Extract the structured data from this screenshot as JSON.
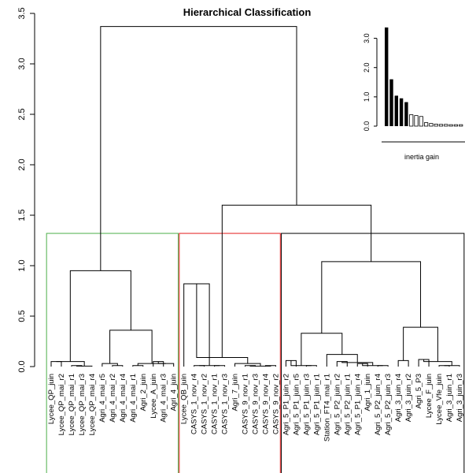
{
  "chart_data": {
    "type": "dendrogram",
    "title": "Hierarchical Classification",
    "ylim": [
      0,
      3.5
    ],
    "yticks": [
      "0.0",
      "0.5",
      "1.0",
      "1.5",
      "2.0",
      "2.5",
      "3.0",
      "3.5"
    ],
    "cut_height": 1.32,
    "leaves": [
      "Lycee_QP_juin",
      "Lycee_QP_mai_r2",
      "Lycee_QP_mai_r1",
      "Lycee_QP_mai_r3",
      "Lycee_QP_mai_r4",
      "Agri_4_mai_r5",
      "Agri_4_mai_r2",
      "Agri_4_mai_r4",
      "Agri_4_mai_r1",
      "Agri_2_juin",
      "Lycee_A_juin",
      "Agri_4_mai_r3",
      "Agri_4_juin",
      "Lycee_QB_juin",
      "CASYS_1_nov_r4",
      "CASYS_1_nov_r2",
      "CASYS_1_nov_r1",
      "CASYS_1_nov_r3",
      "Agri_7_juin",
      "CASYS_9_nov_r1",
      "CASYS_9_nov_r3",
      "CASYS_9_nov_r4",
      "CASYS_9_nov_r2",
      "Agri_5_P1_juin_r2",
      "Agri_5_P1_juin_r5",
      "Agri_5_P1_juin_r3",
      "Agri_5_P1_juin_r1",
      "Station_FT4_mai_r1",
      "Agri_5_P2_juin_r2",
      "Agri_5_P2_juin_r1",
      "Agri_5_P1_juin_r4",
      "Agri_1_juin",
      "Agri_5_P2_juin_r4",
      "Agri_5_P2_juin_r3",
      "Agri_3_juin_r4",
      "Agri_3_juin_r2",
      "Agri_5_P3",
      "Lycee_F_juin",
      "Lycee_Vfe_juin",
      "Agri_3_juin_r1",
      "Agri_3_juin_r3"
    ],
    "merges": [
      {
        "id": "g1",
        "children": [
          0,
          1
        ],
        "height": 0.05
      },
      {
        "id": "g2",
        "children": [
          2,
          3
        ],
        "height": 0.01
      },
      {
        "id": "g3",
        "children": [
          "g2",
          4
        ],
        "height": 0.005
      },
      {
        "id": "g4",
        "children": [
          "g1",
          "g3"
        ],
        "height": 0.05
      },
      {
        "id": "g5",
        "children": [
          6,
          7
        ],
        "height": 0.01
      },
      {
        "id": "g6",
        "children": [
          5,
          "g5"
        ],
        "height": 0.03
      },
      {
        "id": "g7",
        "children": [
          8,
          9
        ],
        "height": 0.01
      },
      {
        "id": "g8",
        "children": [
          10,
          11
        ],
        "height": 0.05
      },
      {
        "id": "g9",
        "children": [
          "g8",
          12
        ],
        "height": 0.03
      },
      {
        "id": "g10",
        "children": [
          "g7",
          "g9"
        ],
        "height": 0.03
      },
      {
        "id": "g11",
        "children": [
          "g6",
          "g10"
        ],
        "height": 0.36
      },
      {
        "id": "g12",
        "children": [
          "g4",
          "g11"
        ],
        "height": 0.95
      },
      {
        "id": "r1",
        "children": [
          14,
          15
        ],
        "height": 0.01
      },
      {
        "id": "r2",
        "children": [
          16,
          17
        ],
        "height": 0.01
      },
      {
        "id": "r3",
        "children": [
          "r1",
          "r2"
        ],
        "height": 0.01
      },
      {
        "id": "r4",
        "children": [
          13,
          "r3"
        ],
        "height": 0.82
      },
      {
        "id": "r5",
        "children": [
          19,
          20
        ],
        "height": 0.01
      },
      {
        "id": "r6",
        "children": [
          21,
          22
        ],
        "height": 0.01
      },
      {
        "id": "r7",
        "children": [
          "r5",
          "r6"
        ],
        "height": 0.005
      },
      {
        "id": "r8",
        "children": [
          18,
          "r7"
        ],
        "height": 0.03
      },
      {
        "id": "r9",
        "children": [
          "r4",
          "r8"
        ],
        "height": 0.09
      },
      {
        "id": "b1",
        "children": [
          23,
          24
        ],
        "height": 0.06
      },
      {
        "id": "b2",
        "children": [
          25,
          26
        ],
        "height": 0.01
      },
      {
        "id": "b3",
        "children": [
          "b1",
          "b2"
        ],
        "height": 0.01
      },
      {
        "id": "b4",
        "children": [
          28,
          29
        ],
        "height": 0.05
      },
      {
        "id": "b5",
        "children": [
          30,
          31
        ],
        "height": 0.03
      },
      {
        "id": "b6",
        "children": [
          32,
          33
        ],
        "height": 0.01
      },
      {
        "id": "b7",
        "children": [
          "b5",
          "b6"
        ],
        "height": 0.01
      },
      {
        "id": "b8",
        "children": [
          "b4",
          "b7"
        ],
        "height": 0.04
      },
      {
        "id": "b9",
        "children": [
          27,
          "b8"
        ],
        "height": 0.12
      },
      {
        "id": "b10",
        "children": [
          "b3",
          "b9"
        ],
        "height": 0.33
      },
      {
        "id": "b11",
        "children": [
          34,
          35
        ],
        "height": 0.06
      },
      {
        "id": "b12",
        "children": [
          36,
          37
        ],
        "height": 0.07
      },
      {
        "id": "b13",
        "children": [
          38,
          39
        ],
        "height": 0.01
      },
      {
        "id": "b14",
        "children": [
          "b13",
          40
        ],
        "height": 0.01
      },
      {
        "id": "b15",
        "children": [
          "b12",
          "b14"
        ],
        "height": 0.05
      },
      {
        "id": "b16",
        "children": [
          "b11",
          "b15"
        ],
        "height": 0.39
      },
      {
        "id": "b17",
        "children": [
          "b10",
          "b16"
        ],
        "height": 1.04
      },
      {
        "id": "b18",
        "children": [
          "r9",
          "b17"
        ],
        "height": 1.6
      },
      {
        "id": "root",
        "children": [
          "g12",
          "b18"
        ],
        "height": 3.37
      }
    ],
    "clusters": [
      {
        "color": "#4daf4a",
        "leaf_range": [
          0,
          12
        ]
      },
      {
        "color": "#e41a1c",
        "leaf_range": [
          13,
          22
        ]
      },
      {
        "color": "#000000",
        "leaf_range": [
          23,
          40
        ]
      }
    ],
    "inset": {
      "type": "bar",
      "label": "inertia gain",
      "yticks": [
        "0.0",
        "1.0",
        "2.0",
        "3.0"
      ],
      "ylim": [
        0,
        3.5
      ],
      "values": [
        3.37,
        1.6,
        1.04,
        0.95,
        0.82,
        0.39,
        0.36,
        0.33,
        0.12,
        0.09,
        0.07,
        0.06,
        0.06,
        0.05,
        0.05,
        0.05
      ],
      "highlighted_count": 5,
      "highlight_color": "#000000",
      "other_color": "#b0b0b0"
    }
  }
}
